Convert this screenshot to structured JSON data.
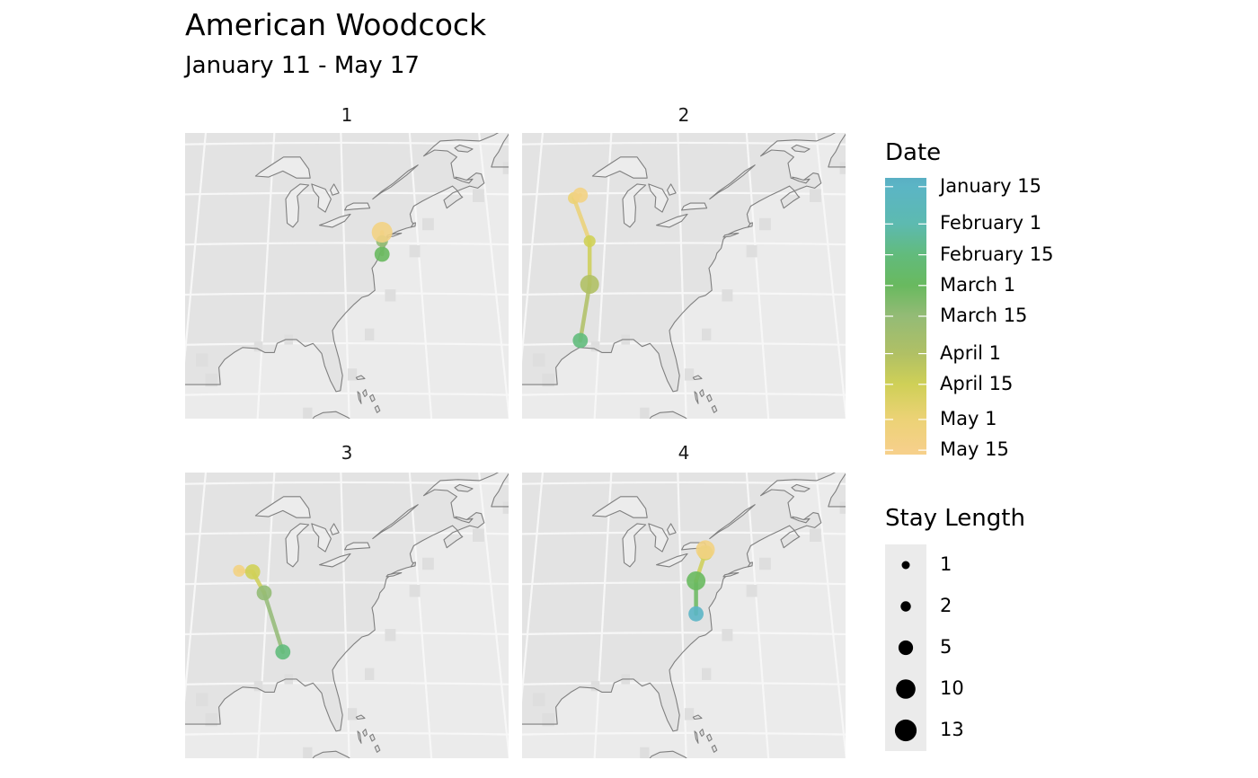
{
  "title": "American Woodcock",
  "subtitle": "January 11 - May 17",
  "colors": {
    "panel_bg": "#ebebeb",
    "land": "#e3e3e3",
    "coast": "#7f7f7f",
    "grid": "#f7f7f7"
  },
  "facets": [
    {
      "label": "1",
      "track": [
        {
          "lon": -74.6,
          "lat": 38.9,
          "date": "March 1",
          "stay": 5
        },
        {
          "lon": -74.6,
          "lat": 40.2,
          "date": "March 15",
          "stay": 2
        },
        {
          "lon": -74.6,
          "lat": 41.1,
          "date": "May 10",
          "stay": 13
        }
      ]
    },
    {
      "label": "2",
      "track": [
        {
          "lon": -93.9,
          "lat": 30.3,
          "date": "February 15",
          "stay": 5
        },
        {
          "lon": -92.6,
          "lat": 35.9,
          "date": "April 1",
          "stay": 10
        },
        {
          "lon": -92.6,
          "lat": 40.2,
          "date": "April 15",
          "stay": 2
        },
        {
          "lon": -94.8,
          "lat": 44.5,
          "date": "May 1",
          "stay": 2
        },
        {
          "lon": -93.9,
          "lat": 44.8,
          "date": "May 10",
          "stay": 5
        }
      ]
    },
    {
      "label": "3",
      "track": [
        {
          "lon": -88.4,
          "lat": 33.1,
          "date": "February 15",
          "stay": 5
        },
        {
          "lon": -91.0,
          "lat": 39.0,
          "date": "March 15",
          "stay": 5
        },
        {
          "lon": -92.6,
          "lat": 41.1,
          "date": "April 15",
          "stay": 5
        },
        {
          "lon": -94.5,
          "lat": 41.2,
          "date": "May 10",
          "stay": 2
        }
      ]
    },
    {
      "label": "4",
      "track": [
        {
          "lon": -77.8,
          "lat": 36.9,
          "date": "January 15",
          "stay": 5
        },
        {
          "lon": -77.8,
          "lat": 40.2,
          "date": "March 1",
          "stay": 10
        },
        {
          "lon": -76.5,
          "lat": 43.0,
          "date": "April 15",
          "stay": 5
        },
        {
          "lon": -76.5,
          "lat": 43.3,
          "date": "May 10",
          "stay": 10
        }
      ]
    }
  ],
  "legend": {
    "color_title": "Date",
    "color_labels": [
      "January 15",
      "February 1",
      "February 15",
      "March 1",
      "March 15",
      "April 1",
      "April 15",
      "May 1",
      "May 15"
    ],
    "color_scale": {
      "dates": [
        "January 11",
        "January 15",
        "February 1",
        "February 15",
        "March 1",
        "March 15",
        "April 1",
        "April 15",
        "May 1",
        "May 15",
        "May 17"
      ],
      "colors": [
        "#5aafc4",
        "#5bb5c5",
        "#5dbab0",
        "#62bb7c",
        "#69b95f",
        "#94bb76",
        "#b0c065",
        "#cfd057",
        "#ecd276",
        "#f6d08a",
        "#f6d08a"
      ]
    },
    "size_title": "Stay Length",
    "size_labels": [
      "1",
      "2",
      "5",
      "10",
      "13"
    ]
  }
}
